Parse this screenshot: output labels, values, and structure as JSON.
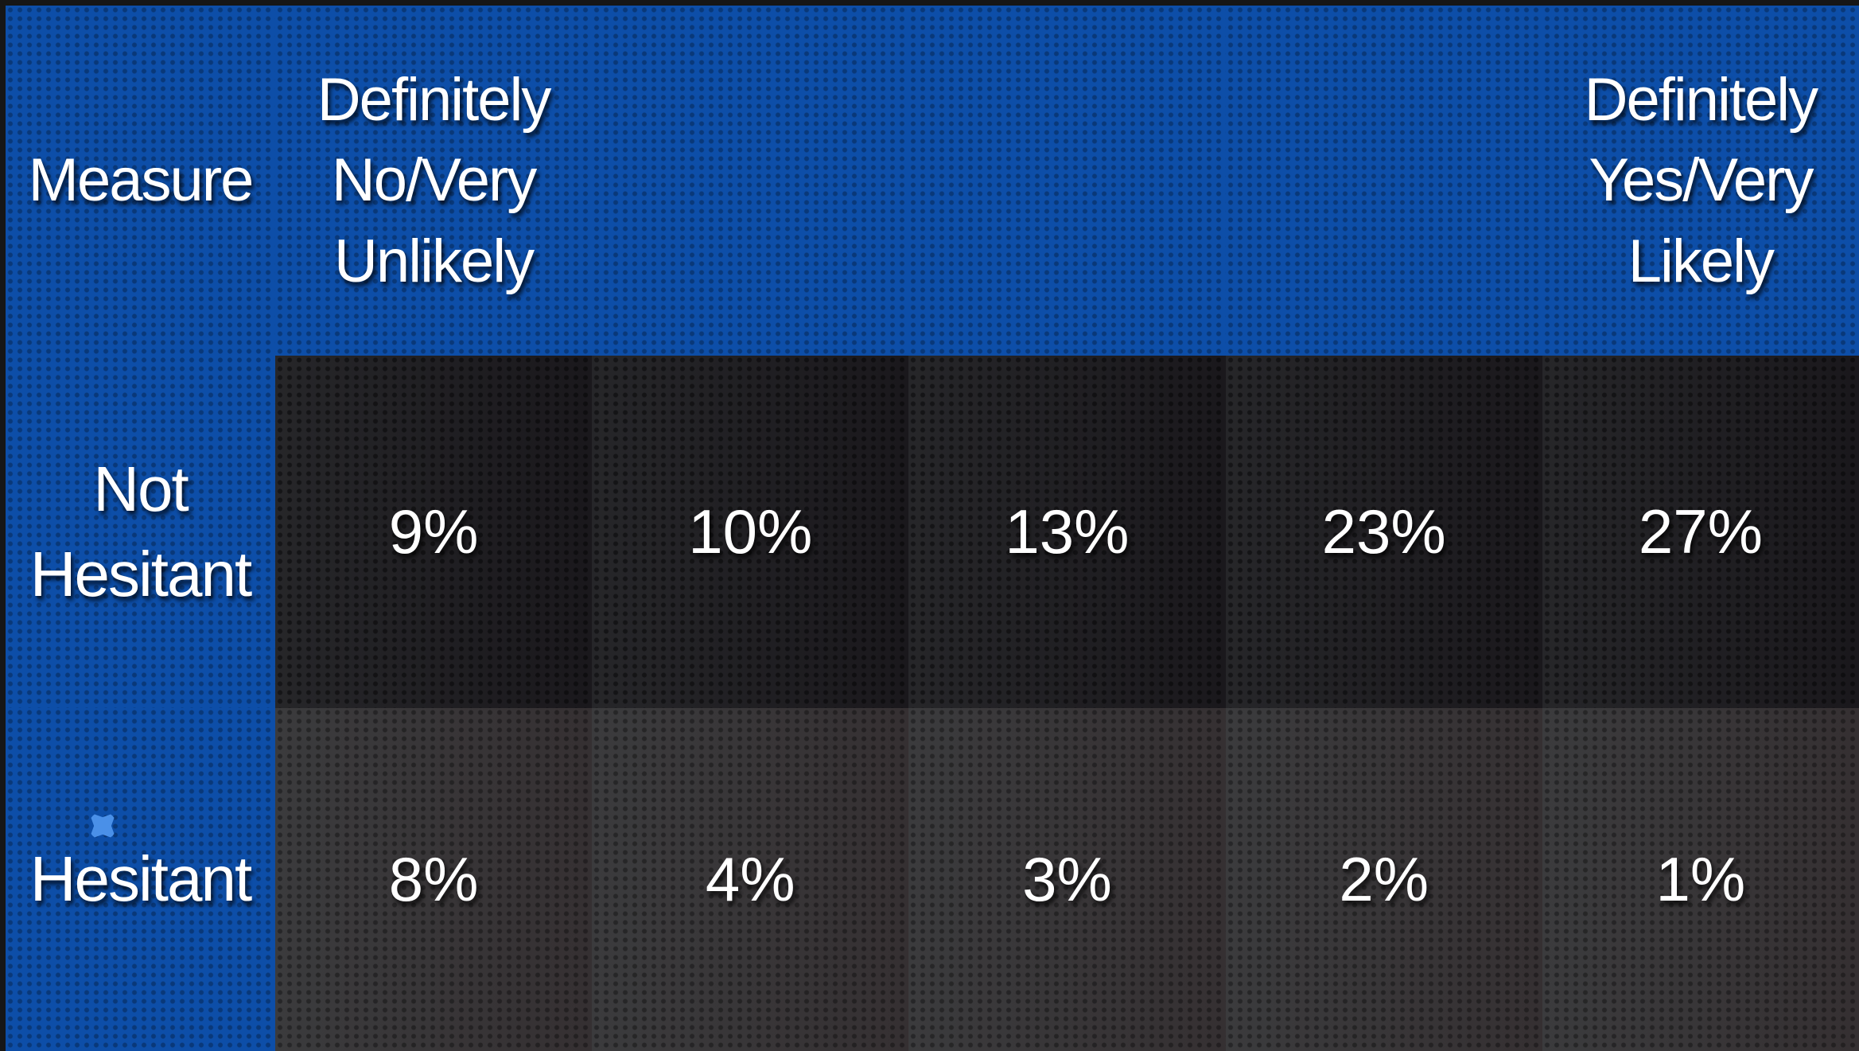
{
  "table": {
    "headers": [
      "Measure",
      "Definitely No/Very Unlikely",
      "Definitely Yes/Very Likely"
    ],
    "rows": [
      {
        "label": "Not Hesitant",
        "cells": [
          "9%",
          "10%",
          "13%",
          "23%",
          "27%"
        ]
      },
      {
        "label": "Hesitant",
        "cells": [
          "8%",
          "4%",
          "3%",
          "2%",
          "1%"
        ]
      }
    ]
  }
}
